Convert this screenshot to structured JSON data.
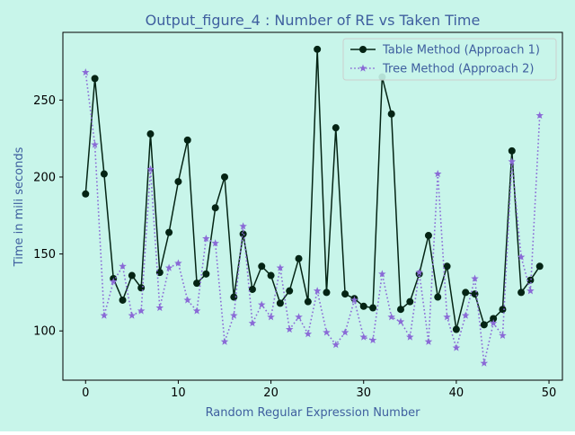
{
  "colors": {
    "figure_bg": "#c8f5ea",
    "axes_bg": "#c8f5ea",
    "text": "#3f5f9f",
    "table_series": "#042414",
    "tree_series": "#8a6ad6",
    "legend_bg": "#c8f5ea"
  },
  "chart_data": {
    "type": "line",
    "title": "Output_figure_4 : Number of RE vs Taken Time",
    "xlabel": "Random Regular Expression Number",
    "ylabel": "Time in mili seconds",
    "xlim": [
      -2.45,
      51.45
    ],
    "ylim": [
      68,
      294
    ],
    "xticks": [
      0,
      10,
      20,
      30,
      40,
      50
    ],
    "yticks": [
      100,
      150,
      200,
      250
    ],
    "grid": false,
    "legend_position": "top-right",
    "x": [
      0,
      1,
      2,
      3,
      4,
      5,
      6,
      7,
      8,
      9,
      10,
      11,
      12,
      13,
      14,
      15,
      16,
      17,
      18,
      19,
      20,
      21,
      22,
      23,
      24,
      25,
      26,
      27,
      28,
      29,
      30,
      31,
      32,
      33,
      34,
      35,
      36,
      37,
      38,
      39,
      40,
      41,
      42,
      43,
      44,
      45,
      46,
      47,
      48,
      49
    ],
    "series": [
      {
        "name": "Table Method (Approach 1)",
        "marker": "circle",
        "linestyle": "solid",
        "values": [
          189,
          264,
          202,
          134,
          120,
          136,
          128,
          228,
          138,
          164,
          197,
          224,
          131,
          137,
          180,
          200,
          122,
          163,
          127,
          142,
          136,
          118,
          126,
          147,
          119,
          283,
          125,
          232,
          124,
          121,
          116,
          115,
          265,
          241,
          114,
          119,
          137,
          162,
          122,
          142,
          101,
          125,
          124,
          104,
          108,
          114,
          217,
          125,
          133,
          142
        ]
      },
      {
        "name": "Tree Method (Approach 2)",
        "marker": "star",
        "linestyle": "dotted",
        "values": [
          268,
          221,
          110,
          132,
          142,
          110,
          113,
          205,
          115,
          141,
          144,
          120,
          113,
          160,
          157,
          93,
          110,
          168,
          105,
          117,
          109,
          141,
          101,
          109,
          98,
          126,
          99,
          91,
          99,
          120,
          96,
          94,
          137,
          109,
          106,
          96,
          138,
          93,
          202,
          109,
          89,
          110,
          134,
          79,
          105,
          97,
          210,
          148,
          126,
          240
        ]
      }
    ]
  }
}
